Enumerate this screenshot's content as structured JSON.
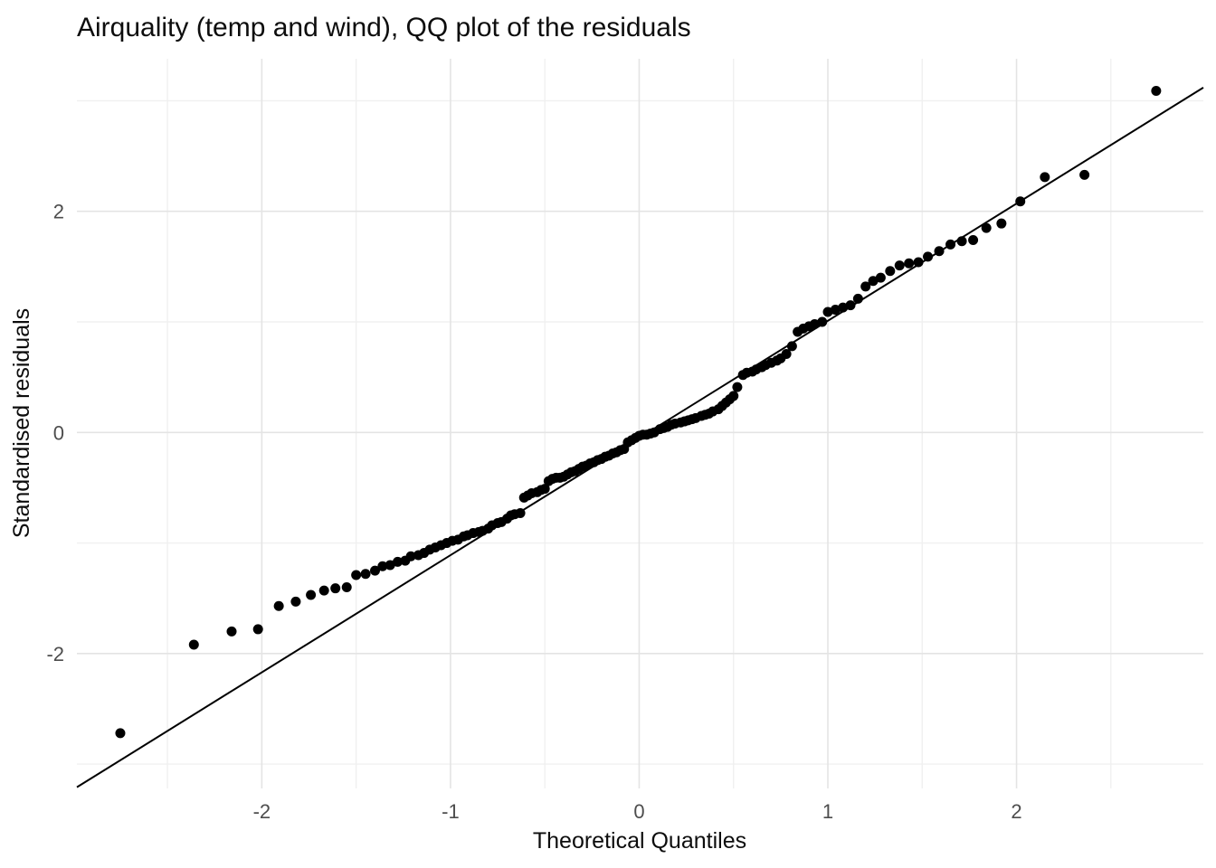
{
  "chart_data": {
    "type": "scatter",
    "title": "Airquality (temp and wind), QQ plot of the residuals",
    "xlabel": "Theoretical Quantiles",
    "ylabel": "Standardised residuals",
    "xlim": [
      -2.98,
      2.99
    ],
    "ylim": [
      -3.22,
      3.38
    ],
    "x_ticks": [
      -2,
      -1,
      0,
      1,
      2
    ],
    "y_ticks": [
      -2,
      0,
      2
    ],
    "x_minor_ticks": [
      -2.5,
      -1.5,
      -0.5,
      0.5,
      1.5,
      2.5
    ],
    "y_minor_ticks": [
      -3,
      -1,
      1,
      3
    ],
    "grid": "major and minor, no panel border, white background",
    "legend": "none",
    "colors": {
      "background": "#ffffff",
      "grid_major": "#e4e4e4",
      "grid_minor": "#f0f0f0",
      "point": "#000000",
      "reference_line": "#000000",
      "tick_text": "#4d4d4d",
      "title_text": "#0d0d0d"
    },
    "point_radius_px": 5.5,
    "reference_line": {
      "slope": 1.06,
      "intercept": -0.05
    },
    "points": [
      [
        -2.75,
        -2.72
      ],
      [
        -2.36,
        -1.92
      ],
      [
        -2.16,
        -1.8
      ],
      [
        -2.02,
        -1.78
      ],
      [
        -1.91,
        -1.57
      ],
      [
        -1.82,
        -1.53
      ],
      [
        -1.74,
        -1.47
      ],
      [
        -1.67,
        -1.43
      ],
      [
        -1.61,
        -1.41
      ],
      [
        -1.55,
        -1.4
      ],
      [
        -1.5,
        -1.29
      ],
      [
        -1.45,
        -1.28
      ],
      [
        -1.4,
        -1.25
      ],
      [
        -1.36,
        -1.21
      ],
      [
        -1.32,
        -1.2
      ],
      [
        -1.28,
        -1.17
      ],
      [
        -1.24,
        -1.16
      ],
      [
        -1.21,
        -1.12
      ],
      [
        -1.17,
        -1.11
      ],
      [
        -1.14,
        -1.09
      ],
      [
        -1.11,
        -1.06
      ],
      [
        -1.08,
        -1.04
      ],
      [
        -1.05,
        -1.02
      ],
      [
        -1.02,
        -1.0
      ],
      [
        -0.99,
        -0.98
      ],
      [
        -0.96,
        -0.97
      ],
      [
        -0.93,
        -0.94
      ],
      [
        -0.91,
        -0.93
      ],
      [
        -0.88,
        -0.91
      ],
      [
        -0.85,
        -0.9
      ],
      [
        -0.83,
        -0.89
      ],
      [
        -0.8,
        -0.87
      ],
      [
        -0.78,
        -0.84
      ],
      [
        -0.75,
        -0.82
      ],
      [
        -0.73,
        -0.81
      ],
      [
        -0.7,
        -0.78
      ],
      [
        -0.68,
        -0.75
      ],
      [
        -0.66,
        -0.74
      ],
      [
        -0.63,
        -0.73
      ],
      [
        -0.61,
        -0.59
      ],
      [
        -0.59,
        -0.57
      ],
      [
        -0.57,
        -0.55
      ],
      [
        -0.54,
        -0.54
      ],
      [
        -0.52,
        -0.52
      ],
      [
        -0.5,
        -0.51
      ],
      [
        -0.48,
        -0.44
      ],
      [
        -0.46,
        -0.42
      ],
      [
        -0.44,
        -0.41
      ],
      [
        -0.42,
        -0.41
      ],
      [
        -0.4,
        -0.4
      ],
      [
        -0.38,
        -0.38
      ],
      [
        -0.36,
        -0.36
      ],
      [
        -0.34,
        -0.35
      ],
      [
        -0.32,
        -0.33
      ],
      [
        -0.3,
        -0.31
      ],
      [
        -0.28,
        -0.3
      ],
      [
        -0.26,
        -0.28
      ],
      [
        -0.24,
        -0.27
      ],
      [
        -0.22,
        -0.25
      ],
      [
        -0.2,
        -0.24
      ],
      [
        -0.18,
        -0.22
      ],
      [
        -0.16,
        -0.21
      ],
      [
        -0.14,
        -0.19
      ],
      [
        -0.12,
        -0.18
      ],
      [
        -0.1,
        -0.16
      ],
      [
        -0.08,
        -0.15
      ],
      [
        -0.06,
        -0.09
      ],
      [
        -0.04,
        -0.07
      ],
      [
        -0.02,
        -0.05
      ],
      [
        0.0,
        -0.03
      ],
      [
        0.02,
        -0.02
      ],
      [
        0.04,
        -0.02
      ],
      [
        0.06,
        -0.01
      ],
      [
        0.08,
        0.0
      ],
      [
        0.11,
        0.03
      ],
      [
        0.13,
        0.04
      ],
      [
        0.15,
        0.05
      ],
      [
        0.17,
        0.07
      ],
      [
        0.19,
        0.08
      ],
      [
        0.22,
        0.09
      ],
      [
        0.24,
        0.1
      ],
      [
        0.26,
        0.11
      ],
      [
        0.28,
        0.12
      ],
      [
        0.3,
        0.13
      ],
      [
        0.33,
        0.15
      ],
      [
        0.35,
        0.16
      ],
      [
        0.37,
        0.17
      ],
      [
        0.39,
        0.19
      ],
      [
        0.42,
        0.21
      ],
      [
        0.44,
        0.24
      ],
      [
        0.46,
        0.27
      ],
      [
        0.48,
        0.3
      ],
      [
        0.5,
        0.33
      ],
      [
        0.52,
        0.41
      ],
      [
        0.55,
        0.52
      ],
      [
        0.57,
        0.54
      ],
      [
        0.6,
        0.55
      ],
      [
        0.62,
        0.57
      ],
      [
        0.65,
        0.59
      ],
      [
        0.67,
        0.61
      ],
      [
        0.7,
        0.63
      ],
      [
        0.73,
        0.65
      ],
      [
        0.75,
        0.67
      ],
      [
        0.78,
        0.71
      ],
      [
        0.81,
        0.78
      ],
      [
        0.84,
        0.91
      ],
      [
        0.87,
        0.94
      ],
      [
        0.9,
        0.96
      ],
      [
        0.93,
        0.98
      ],
      [
        0.97,
        1.0
      ],
      [
        1.0,
        1.09
      ],
      [
        1.04,
        1.11
      ],
      [
        1.08,
        1.13
      ],
      [
        1.12,
        1.15
      ],
      [
        1.16,
        1.21
      ],
      [
        1.2,
        1.32
      ],
      [
        1.24,
        1.37
      ],
      [
        1.28,
        1.4
      ],
      [
        1.33,
        1.46
      ],
      [
        1.38,
        1.51
      ],
      [
        1.43,
        1.53
      ],
      [
        1.48,
        1.54
      ],
      [
        1.53,
        1.59
      ],
      [
        1.59,
        1.64
      ],
      [
        1.65,
        1.7
      ],
      [
        1.71,
        1.73
      ],
      [
        1.77,
        1.74
      ],
      [
        1.84,
        1.85
      ],
      [
        1.92,
        1.89
      ],
      [
        2.02,
        2.09
      ],
      [
        2.15,
        2.31
      ],
      [
        2.36,
        2.33
      ],
      [
        2.74,
        3.09
      ]
    ]
  }
}
